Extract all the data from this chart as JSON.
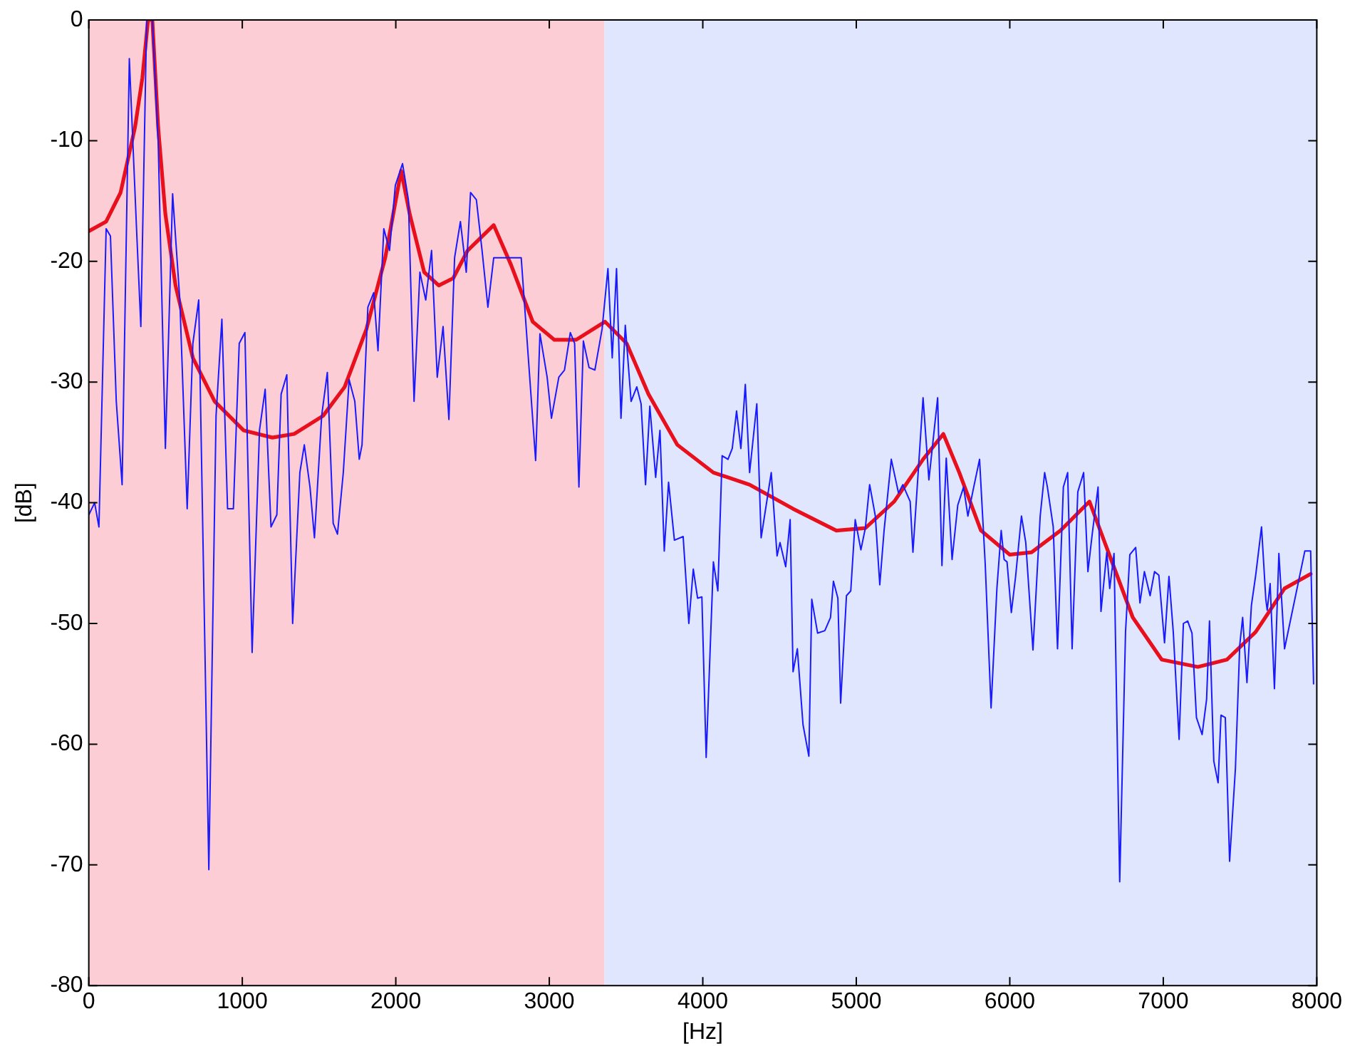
{
  "chart_data": {
    "type": "line",
    "xlabel": "[Hz]",
    "ylabel": "[dB]",
    "xlim": [
      0,
      8000
    ],
    "ylim": [
      -80,
      0
    ],
    "xticks": [
      0,
      1000,
      2000,
      3000,
      4000,
      5000,
      6000,
      7000,
      8000
    ],
    "yticks": [
      -80,
      -70,
      -60,
      -50,
      -40,
      -30,
      -20,
      -10,
      0
    ],
    "grid": false,
    "legend": false,
    "marker": "none",
    "line_style": "solid",
    "bands": [
      {
        "axis": "x",
        "from": 0,
        "to": 3360,
        "color": "#fccdd5"
      },
      {
        "axis": "x",
        "from": 3360,
        "to": 8000,
        "color": "#dfe6fd"
      }
    ],
    "series": [
      {
        "color": "#1a1aff",
        "x": [
          0,
          38,
          66,
          113,
          141,
          179,
          217,
          264,
          311,
          339,
          377,
          414,
          452,
          499,
          546,
          593,
          641,
          678,
          716,
          782,
          829,
          867,
          904,
          942,
          980,
          1017,
          1064,
          1112,
          1149,
          1187,
          1225,
          1253,
          1290,
          1328,
          1375,
          1404,
          1441,
          1470,
          1517,
          1554,
          1592,
          1620,
          1658,
          1696,
          1733,
          1762,
          1780,
          1818,
          1856,
          1884,
          1922,
          1959,
          1997,
          2044,
          2082,
          2119,
          2157,
          2195,
          2233,
          2270,
          2308,
          2346,
          2383,
          2421,
          2459,
          2487,
          2525,
          2562,
          2600,
          2638,
          2675,
          2722,
          2817,
          2911,
          2939,
          2986,
          3014,
          3062,
          3099,
          3137,
          3165,
          3193,
          3222,
          3259,
          3297,
          3344,
          3382,
          3410,
          3438,
          3467,
          3495,
          3533,
          3570,
          3598,
          3627,
          3655,
          3693,
          3721,
          3749,
          3777,
          3815,
          3872,
          3909,
          3938,
          3966,
          3994,
          4022,
          4069,
          4098,
          4126,
          4164,
          4192,
          4220,
          4248,
          4277,
          4305,
          4352,
          4380,
          4446,
          4484,
          4503,
          4540,
          4569,
          4588,
          4616,
          4653,
          4691,
          4710,
          4748,
          4795,
          4832,
          4851,
          4880,
          4898,
          4936,
          4964,
          4993,
          5030,
          5059,
          5087,
          5124,
          5153,
          5181,
          5228,
          5275,
          5303,
          5351,
          5369,
          5435,
          5473,
          5530,
          5558,
          5586,
          5624,
          5661,
          5699,
          5727,
          5765,
          5803,
          5840,
          5878,
          5916,
          5944,
          5963,
          5982,
          6010,
          6038,
          6076,
          6104,
          6151,
          6198,
          6227,
          6245,
          6283,
          6311,
          6349,
          6377,
          6406,
          6443,
          6481,
          6509,
          6537,
          6575,
          6594,
          6632,
          6651,
          6679,
          6716,
          6754,
          6782,
          6820,
          6848,
          6877,
          6914,
          6943,
          6971,
          7008,
          7037,
          7065,
          7103,
          7131,
          7159,
          7187,
          7216,
          7253,
          7282,
          7301,
          7329,
          7357,
          7376,
          7404,
          7432,
          7470,
          7498,
          7517,
          7545,
          7574,
          7602,
          7640,
          7668,
          7677,
          7696,
          7724,
          7753,
          7790,
          7922,
          7960,
          7979
        ],
        "values": [
          -41,
          -40,
          -42,
          -17.3,
          -17.9,
          -31.6,
          -38.5,
          -3.2,
          -17.3,
          -25.4,
          0,
          0,
          -10.1,
          -35.5,
          -14.4,
          -23.2,
          -40.5,
          -26.8,
          -23.2,
          -70.4,
          -32.8,
          -24.8,
          -40.5,
          -40.5,
          -26.8,
          -25.9,
          -52.4,
          -34,
          -30.6,
          -42,
          -41,
          -31,
          -29.4,
          -50,
          -37.5,
          -35.2,
          -38.7,
          -42.9,
          -32.8,
          -29.2,
          -41.7,
          -42.6,
          -37.5,
          -29.8,
          -31.6,
          -36.4,
          -35.2,
          -23.8,
          -22.6,
          -27.4,
          -17.3,
          -19.1,
          -13.7,
          -11.9,
          -14.9,
          -31.6,
          -20.9,
          -23.2,
          -19.1,
          -29.6,
          -25.4,
          -33.1,
          -19.7,
          -16.7,
          -20.9,
          -14.3,
          -14.9,
          -19.1,
          -23.8,
          -19.7,
          -19.7,
          -19.7,
          -19.7,
          -36.5,
          -26,
          -29.6,
          -33,
          -29.6,
          -29,
          -25.9,
          -26.8,
          -38.7,
          -26.6,
          -28.8,
          -29,
          -25.6,
          -20.6,
          -28,
          -20.6,
          -33,
          -25.3,
          -31.6,
          -30.4,
          -31.8,
          -38.5,
          -32,
          -37.9,
          -34,
          -44,
          -38.3,
          -43.1,
          -42.8,
          -50,
          -45.5,
          -47.9,
          -47.8,
          -61.1,
          -44.9,
          -47.3,
          -36.1,
          -36.4,
          -35.5,
          -32.4,
          -35.5,
          -30.2,
          -37.5,
          -31.8,
          -42.9,
          -37.5,
          -44.4,
          -43.3,
          -45.3,
          -41.4,
          -54,
          -52.1,
          -58.4,
          -61,
          -48,
          -50.8,
          -50.6,
          -49.5,
          -46.5,
          -47.9,
          -56.6,
          -47.7,
          -47.3,
          -41.4,
          -43.9,
          -42.1,
          -38.5,
          -41.1,
          -46.8,
          -42.3,
          -36.4,
          -39.2,
          -38.5,
          -39.9,
          -44.1,
          -31.3,
          -38.1,
          -31.3,
          -45.2,
          -36.3,
          -44.7,
          -40.2,
          -38.7,
          -41.1,
          -38.7,
          -36.4,
          -45.1,
          -57,
          -47.1,
          -42.3,
          -44.7,
          -44.9,
          -49.1,
          -46.1,
          -41.1,
          -43.3,
          -52.2,
          -41.1,
          -37.5,
          -38.7,
          -42,
          -52.1,
          -38.7,
          -37.5,
          -52.1,
          -39.1,
          -37.5,
          -45.7,
          -42.6,
          -38.7,
          -49,
          -44.1,
          -47.1,
          -44.2,
          -71.4,
          -50.7,
          -44.3,
          -43.7,
          -48.3,
          -45.7,
          -47.7,
          -45.7,
          -46,
          -51.6,
          -46.1,
          -50.7,
          -59.6,
          -50,
          -49.8,
          -50.8,
          -57.8,
          -59.2,
          -56.3,
          -49.8,
          -61.4,
          -63.2,
          -57.6,
          -57.8,
          -69.7,
          -62,
          -51.8,
          -49.5,
          -54.9,
          -48.5,
          -46,
          -42,
          -48,
          -48.9,
          -46.7,
          -55.4,
          -44.2,
          -52.1,
          -44,
          -44,
          -55
        ]
      },
      {
        "color": "#e8101c",
        "x": [
          0,
          113,
          207,
          301,
          349,
          386,
          414,
          452,
          499,
          565,
          678,
          820,
          1008,
          1196,
          1338,
          1526,
          1667,
          1809,
          1931,
          2035,
          2091,
          2185,
          2280,
          2374,
          2468,
          2638,
          2751,
          2892,
          3033,
          3175,
          3363,
          3504,
          3646,
          3834,
          4069,
          4305,
          4588,
          4870,
          5059,
          5247,
          5435,
          5567,
          5671,
          5812,
          6000,
          6142,
          6330,
          6519,
          6660,
          6801,
          6990,
          7225,
          7414,
          7602,
          7790,
          7960
        ],
        "values": [
          -17.5,
          -16.7,
          -14.3,
          -8.9,
          -4.8,
          0,
          0,
          -8.9,
          -16.1,
          -22,
          -28,
          -31.6,
          -34,
          -34.6,
          -34.3,
          -32.8,
          -30.4,
          -25.6,
          -19.7,
          -12.5,
          -16.1,
          -20.9,
          -22,
          -21.4,
          -19.1,
          -17,
          -20.3,
          -25,
          -26.5,
          -26.5,
          -25,
          -26.8,
          -31,
          -35.2,
          -37.5,
          -38.5,
          -40.5,
          -42.3,
          -42.1,
          -39.9,
          -36.4,
          -34.3,
          -37.5,
          -42.3,
          -44.3,
          -44.1,
          -42.3,
          -39.9,
          -44.7,
          -49.5,
          -53,
          -53.6,
          -53,
          -50.7,
          -47.1,
          -45.9
        ]
      }
    ]
  }
}
